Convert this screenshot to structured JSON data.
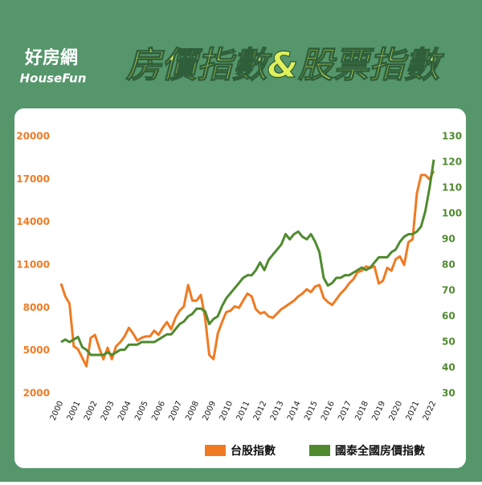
{
  "header": {
    "logo_cn": "好房網",
    "logo_en": "HouseFun"
  },
  "chart_data": {
    "type": "line",
    "title": "房價指數&股票指數",
    "x": [
      2000,
      2000.25,
      2000.5,
      2000.75,
      2001,
      2001.25,
      2001.5,
      2001.75,
      2002,
      2002.25,
      2002.5,
      2002.75,
      2003,
      2003.25,
      2003.5,
      2003.75,
      2004,
      2004.25,
      2004.5,
      2004.75,
      2005,
      2005.25,
      2005.5,
      2005.75,
      2006,
      2006.25,
      2006.5,
      2006.75,
      2007,
      2007.25,
      2007.5,
      2007.75,
      2008,
      2008.25,
      2008.5,
      2008.75,
      2009,
      2009.25,
      2009.5,
      2009.75,
      2010,
      2010.25,
      2010.5,
      2010.75,
      2011,
      2011.25,
      2011.5,
      2011.75,
      2012,
      2012.25,
      2012.5,
      2012.75,
      2013,
      2013.25,
      2013.5,
      2013.75,
      2014,
      2014.25,
      2014.5,
      2014.75,
      2015,
      2015.25,
      2015.5,
      2015.75,
      2016,
      2016.25,
      2016.5,
      2016.75,
      2017,
      2017.25,
      2017.5,
      2017.75,
      2018,
      2018.25,
      2018.5,
      2018.75,
      2019,
      2019.25,
      2019.5,
      2019.75,
      2020,
      2020.25,
      2020.5,
      2020.75,
      2021,
      2021.25,
      2021.5,
      2021.75,
      2022
    ],
    "series": [
      {
        "name": "台股指數",
        "color": "#f07a22",
        "axis": "y",
        "values": [
          9700,
          8800,
          8300,
          5300,
          5100,
          4500,
          3900,
          5900,
          6100,
          5200,
          4400,
          5200,
          4400,
          5300,
          5600,
          6000,
          6600,
          6200,
          5700,
          5900,
          6000,
          6000,
          6400,
          6100,
          6600,
          7000,
          6500,
          7300,
          7800,
          8100,
          9600,
          8500,
          8500,
          8900,
          7300,
          4700,
          4400,
          6200,
          7000,
          7700,
          7800,
          8100,
          8000,
          8500,
          9000,
          8800,
          7900,
          7600,
          7700,
          7400,
          7300,
          7600,
          7900,
          8100,
          8300,
          8500,
          8800,
          9000,
          9300,
          9100,
          9500,
          9600,
          8700,
          8400,
          8200,
          8600,
          9000,
          9300,
          9700,
          10000,
          10500,
          10600,
          10900,
          10800,
          10900,
          9700,
          9900,
          10800,
          10600,
          11400,
          11600,
          11000,
          12600,
          12800,
          16000,
          17300,
          17300,
          17000,
          17600
        ]
      },
      {
        "name": "國泰全國房價指數",
        "color": "#4f8a2e",
        "axis": "y2",
        "values": [
          50,
          51,
          50,
          51,
          52,
          48,
          47,
          45,
          45,
          45,
          45,
          46,
          45,
          46,
          47,
          47,
          49,
          49,
          49,
          50,
          50,
          50,
          50,
          51,
          52,
          53,
          53,
          55,
          57,
          58,
          60,
          61,
          63,
          63,
          62,
          57,
          59,
          60,
          64,
          67,
          69,
          71,
          73,
          75,
          76,
          76,
          78,
          81,
          78,
          82,
          84,
          86,
          88,
          92,
          90,
          92,
          93,
          91,
          90,
          92,
          89,
          85,
          75,
          72,
          73,
          75,
          75,
          76,
          76,
          77,
          78,
          79,
          78,
          79,
          81,
          83,
          83,
          83,
          85,
          86,
          89,
          91,
          92,
          92,
          93,
          95,
          101,
          110,
          121
        ]
      }
    ],
    "xlim": [
      2000,
      2022
    ],
    "xticks": [
      2000,
      2001,
      2002,
      2003,
      2004,
      2005,
      2006,
      2007,
      2008,
      2009,
      2010,
      2011,
      2012,
      2013,
      2014,
      2015,
      2016,
      2017,
      2018,
      2019,
      2020,
      2021,
      2022
    ],
    "ylim": [
      2000,
      20000
    ],
    "yticks": [
      2000,
      5000,
      8000,
      11000,
      14000,
      17000,
      20000
    ],
    "y2lim": [
      30,
      130
    ],
    "y2ticks": [
      30,
      40,
      50,
      60,
      70,
      80,
      90,
      100,
      110,
      120,
      130
    ],
    "grid": false
  }
}
